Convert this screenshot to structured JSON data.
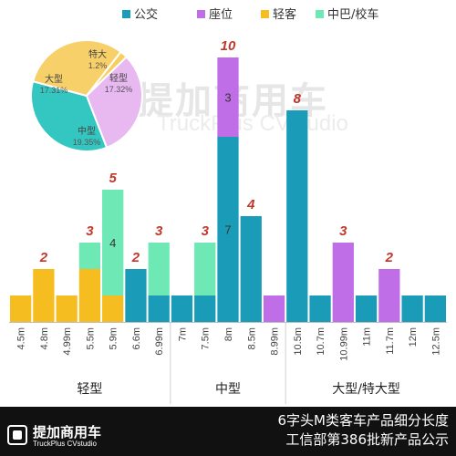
{
  "watermark": {
    "main": "提加商用车",
    "sub": "TruckPlus CVstudio"
  },
  "footer": {
    "brand": "提加商用车",
    "brand_sub": "TruckPlus CVstudio",
    "title": "6字头M类客车产品细分长度",
    "subtitle": "工信部第386批新产品公示"
  },
  "colors": {
    "公交": "#1a9cb8",
    "座位": "#c06ee8",
    "轻客": "#f5bd1f",
    "中巴/校车": "#6ee8b4",
    "total_label": "#c0392b"
  },
  "chart_data": [
    {
      "type": "bar",
      "stacked": true,
      "legend": [
        "公交",
        "座位",
        "轻客",
        "中巴/校车"
      ],
      "legend_position": "top-right",
      "categories": [
        "4.5m",
        "4.8m",
        "4.99m",
        "5.5m",
        "5.9m",
        "6.6m",
        "6.99m",
        "7m",
        "7.5m",
        "8m",
        "8.5m",
        "8.99m",
        "10.5m",
        "10.7m",
        "10.99m",
        "11m",
        "11.7m",
        "12m",
        "12.5m"
      ],
      "groups": [
        {
          "label": "轻型",
          "from": 0,
          "to": 6
        },
        {
          "label": "中型",
          "from": 7,
          "to": 11
        },
        {
          "label": "大型/特大型",
          "from": 12,
          "to": 18
        }
      ],
      "series": [
        {
          "name": "公交",
          "values": [
            0,
            0,
            0,
            0,
            0,
            2,
            1,
            1,
            1,
            7,
            4,
            0,
            8,
            1,
            0,
            1,
            0,
            1,
            1
          ]
        },
        {
          "name": "座位",
          "values": [
            0,
            0,
            0,
            0,
            0,
            0,
            0,
            0,
            0,
            3,
            0,
            1,
            0,
            0,
            3,
            0,
            2,
            0,
            0
          ]
        },
        {
          "name": "轻客",
          "values": [
            1,
            2,
            1,
            2,
            1,
            0,
            0,
            0,
            0,
            0,
            0,
            0,
            0,
            0,
            0,
            0,
            0,
            0,
            0
          ]
        },
        {
          "name": "中巴/校车",
          "values": [
            0,
            0,
            0,
            1,
            4,
            0,
            2,
            0,
            2,
            0,
            0,
            0,
            0,
            0,
            0,
            0,
            0,
            0,
            0
          ]
        }
      ],
      "segment_labels": [
        {
          "category": "5.9m",
          "series": "中巴/校车",
          "value": 4
        },
        {
          "category": "8m",
          "series": "座位",
          "value": 3
        },
        {
          "category": "8m",
          "series": "公交",
          "value": 7
        }
      ],
      "totals": [
        {
          "category": "4.8m",
          "value": 2
        },
        {
          "category": "5.5m",
          "value": 3
        },
        {
          "category": "5.9m",
          "value": 5
        },
        {
          "category": "6.6m",
          "value": 2
        },
        {
          "category": "6.99m",
          "value": 3
        },
        {
          "category": "7.5m",
          "value": 3
        },
        {
          "category": "8m",
          "value": 10
        },
        {
          "category": "8.5m",
          "value": 4
        },
        {
          "category": "10.5m",
          "value": 8
        },
        {
          "category": "10.99m",
          "value": 3
        },
        {
          "category": "11.7m",
          "value": 2
        }
      ],
      "ylim": [
        0,
        10
      ],
      "grid": false
    },
    {
      "type": "pie",
      "labels": [
        "中型",
        "大型",
        "特大",
        "轻型"
      ],
      "values": [
        19.35,
        17.31,
        1.2,
        17.32
      ],
      "display": [
        "19.35%",
        "17.31%",
        "1.2%",
        "17.32%"
      ],
      "colors": [
        "#34c6c0",
        "#f7d06a",
        "#f5cf5f",
        "#e8b8f0"
      ]
    }
  ]
}
